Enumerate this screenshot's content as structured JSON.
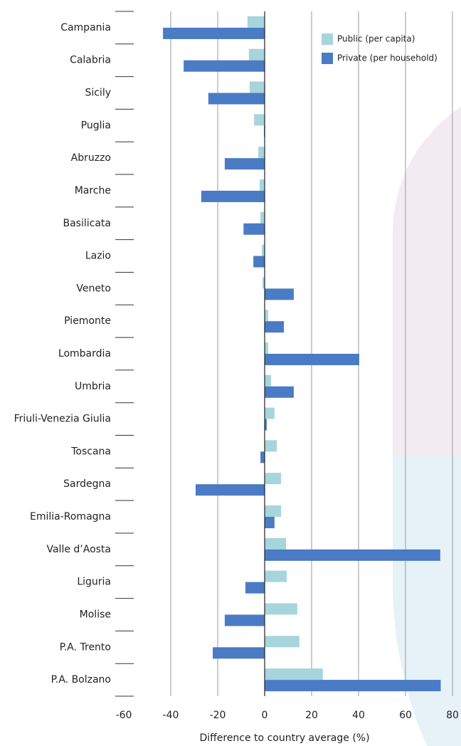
{
  "chart_data": {
    "type": "bar",
    "orientation": "horizontal",
    "categories": [
      "Campania",
      "Calabria",
      "Sicily",
      "Puglia",
      "Abruzzo",
      "Marche",
      "Basilicata",
      "Lazio",
      "Veneto",
      "Piemonte",
      "Lombardia",
      "Umbria",
      "Friuli-Venezia Giulia",
      "Toscana",
      "Sardegna",
      "Emilia-Romagna",
      "Valle d’Aosta",
      "Liguria",
      "Molise",
      "P.A. Trento",
      "P.A. Bolzano"
    ],
    "series": [
      {
        "name": "Public (per capita)",
        "color": "#a6d5dc",
        "values": [
          -7.3,
          -6.7,
          -6.4,
          -4.5,
          -2.7,
          -2.1,
          -1.8,
          -1.2,
          -0.9,
          1.5,
          1.5,
          2.7,
          4.2,
          5.2,
          7,
          7,
          9.1,
          9.4,
          13.9,
          14.8,
          24.8
        ]
      },
      {
        "name": "Private (per household)",
        "color": "#4a7bc4",
        "values": [
          -43.3,
          -34.5,
          -24,
          -0.3,
          -17,
          -27,
          -9,
          -4.8,
          12.4,
          8.2,
          40.3,
          12.4,
          0.9,
          -1.8,
          -29.4,
          4.2,
          74.8,
          -8.2,
          -17,
          -22.1,
          75
        ]
      }
    ],
    "xlabel": "Difference to country average (%)",
    "xlim": [
      -60,
      80
    ],
    "xticks": [
      -60,
      -40,
      -20,
      0,
      20,
      40,
      60,
      80
    ],
    "grid": true,
    "legend": "top-right"
  }
}
